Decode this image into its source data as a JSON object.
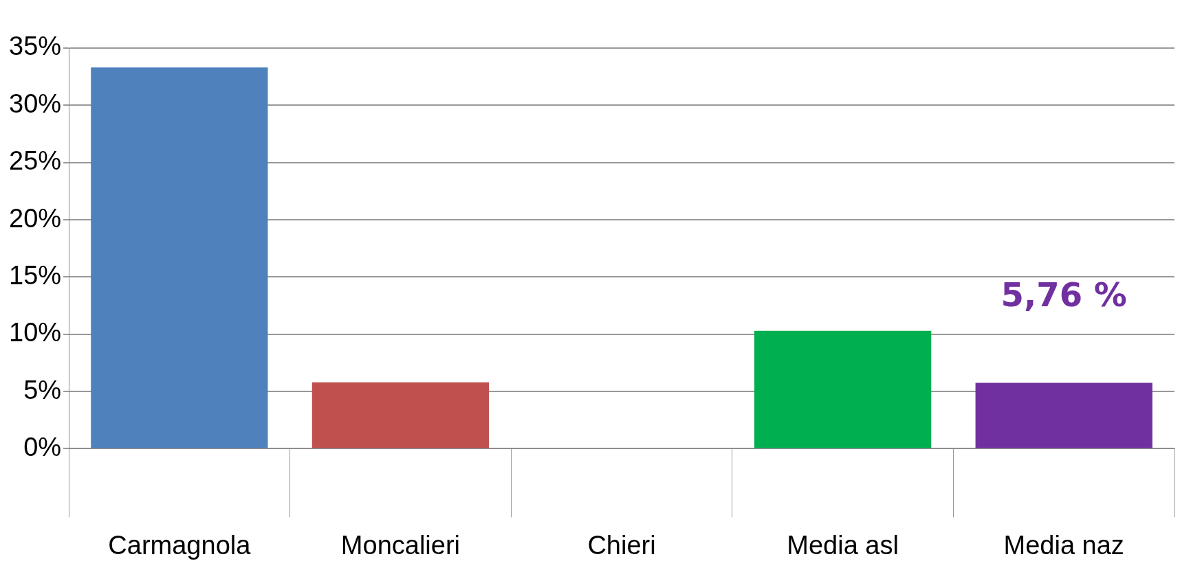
{
  "chart_data": {
    "type": "bar",
    "categories": [
      "Carmagnola",
      "Moncalieri",
      "Chieri",
      "Media asl",
      "Media naz"
    ],
    "values": [
      33.3,
      5.8,
      0,
      10.3,
      5.76
    ],
    "colors": [
      "#4f81bd",
      "#c0504d",
      "#bfbf00",
      "#00b050",
      "#7030a0"
    ],
    "value_labels": [
      null,
      null,
      null,
      null,
      "5,76 %"
    ],
    "ylim": [
      0,
      35
    ],
    "yticks": [
      {
        "value": 0,
        "label": "0%"
      },
      {
        "value": 5,
        "label": "5%"
      },
      {
        "value": 10,
        "label": "10%"
      },
      {
        "value": 15,
        "label": "15%"
      },
      {
        "value": 20,
        "label": "20%"
      },
      {
        "value": 25,
        "label": "25%"
      },
      {
        "value": 30,
        "label": "30%"
      },
      {
        "value": 35,
        "label": "35%"
      }
    ],
    "grid": "y"
  }
}
